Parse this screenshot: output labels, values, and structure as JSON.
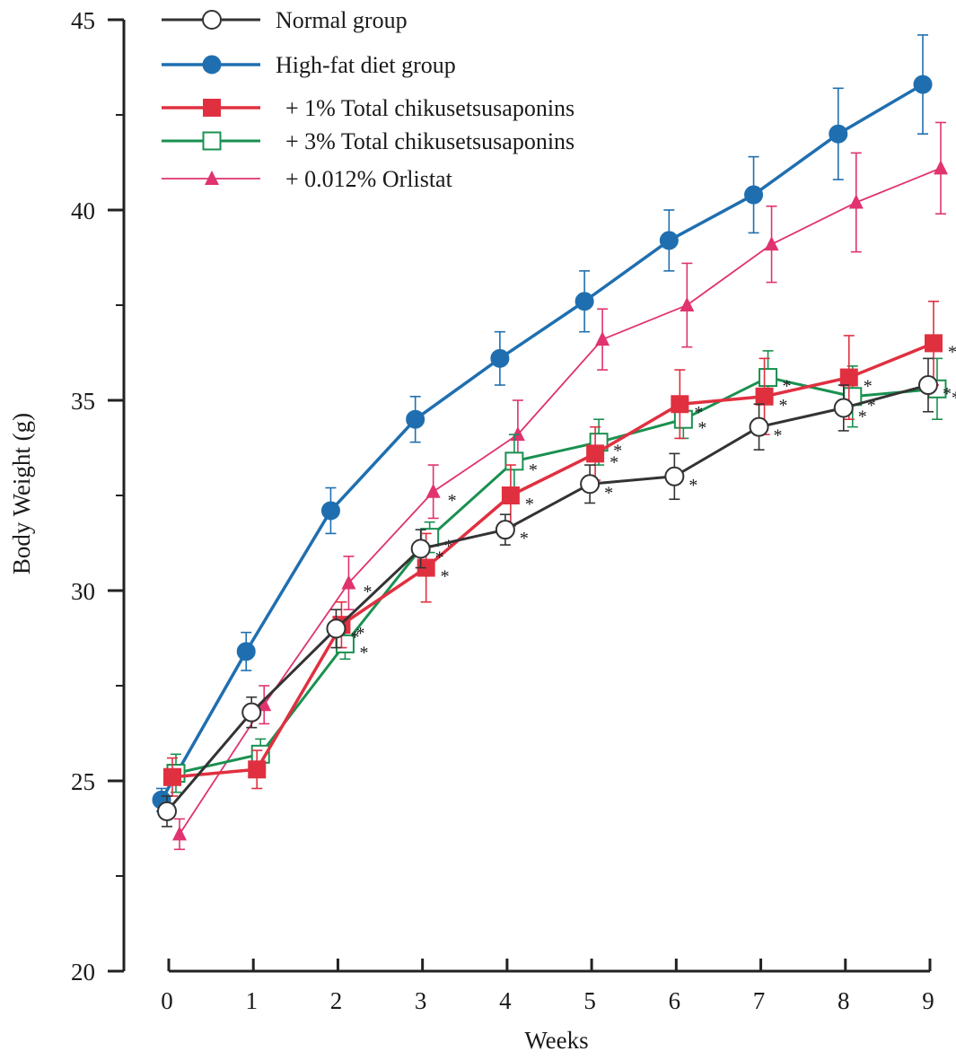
{
  "chart_data": {
    "type": "line",
    "xlabel": "Weeks",
    "ylabel": "Body Weight (g)",
    "ylim": [
      20,
      45
    ],
    "xlim": [
      0,
      9
    ],
    "x_ticks": [
      "0",
      "1",
      "2",
      "3",
      "4",
      "5",
      "6",
      "7",
      "8",
      "9"
    ],
    "y_ticks": [
      "20",
      "25",
      "30",
      "35",
      "40",
      "45"
    ],
    "grid": false,
    "legend_position": "top-left",
    "series": [
      {
        "name": "Normal group",
        "key": "normal",
        "color": "#333333",
        "marker": "circle-open",
        "x": [
          0,
          1,
          2,
          3,
          4,
          5,
          6,
          7,
          8,
          9
        ],
        "values": [
          24.2,
          26.8,
          29.0,
          31.1,
          31.6,
          32.8,
          33.0,
          34.3,
          34.8,
          35.4
        ],
        "errors": [
          0.4,
          0.4,
          0.5,
          0.5,
          0.4,
          0.5,
          0.6,
          0.6,
          0.6,
          0.7
        ],
        "significant": [
          false,
          false,
          true,
          true,
          true,
          true,
          true,
          true,
          true,
          true
        ]
      },
      {
        "name": "High-fat diet group",
        "key": "hfd",
        "color": "#1f6fb0",
        "marker": "circle-filled",
        "x": [
          0,
          1,
          2,
          3,
          4,
          5,
          6,
          7,
          8,
          9
        ],
        "values": [
          24.5,
          28.4,
          32.1,
          34.5,
          36.1,
          37.6,
          39.2,
          40.4,
          42.0,
          43.3
        ],
        "errors": [
          0.3,
          0.5,
          0.6,
          0.6,
          0.7,
          0.8,
          0.8,
          1.0,
          1.2,
          1.3
        ],
        "significant": [
          false,
          false,
          false,
          false,
          false,
          false,
          false,
          false,
          false,
          false
        ]
      },
      {
        "name": "+ 1% Total chikusetsusaponins",
        "key": "tcs1",
        "color": "#e03040",
        "marker": "square-filled",
        "x": [
          0,
          1,
          2,
          3,
          4,
          5,
          6,
          7,
          8,
          9
        ],
        "values": [
          25.1,
          25.3,
          29.1,
          30.6,
          32.5,
          33.6,
          34.9,
          35.1,
          35.6,
          36.5
        ],
        "errors": [
          0.5,
          0.5,
          0.6,
          0.9,
          0.8,
          0.7,
          0.9,
          1.0,
          1.1,
          1.1
        ],
        "significant": [
          false,
          false,
          true,
          true,
          true,
          true,
          true,
          true,
          true,
          true
        ]
      },
      {
        "name": "+ 3% Total chikusetsusaponins",
        "key": "tcs3",
        "color": "#1a9050",
        "marker": "square-open",
        "x": [
          0,
          1,
          2,
          3,
          4,
          5,
          6,
          7,
          8,
          9
        ],
        "values": [
          25.2,
          25.7,
          28.6,
          31.4,
          33.4,
          33.9,
          34.5,
          35.6,
          35.1,
          35.3
        ],
        "errors": [
          0.5,
          0.4,
          0.4,
          0.4,
          0.7,
          0.6,
          0.5,
          0.7,
          0.8,
          0.8
        ],
        "significant": [
          false,
          false,
          true,
          true,
          true,
          true,
          true,
          true,
          true,
          true
        ]
      },
      {
        "name": "+ 0.012% Orlistat",
        "key": "orlistat",
        "color": "#e0336f",
        "marker": "triangle-filled",
        "x": [
          0,
          1,
          2,
          3,
          4,
          5,
          6,
          7,
          8,
          9
        ],
        "values": [
          23.6,
          27.0,
          30.2,
          32.6,
          34.1,
          36.6,
          37.5,
          39.1,
          40.2,
          41.1
        ],
        "errors": [
          0.4,
          0.5,
          0.7,
          0.7,
          0.9,
          0.8,
          1.1,
          1.0,
          1.3,
          1.2
        ],
        "significant": [
          false,
          false,
          true,
          true,
          false,
          false,
          false,
          false,
          false,
          false
        ]
      }
    ],
    "significance_marker": "*"
  }
}
